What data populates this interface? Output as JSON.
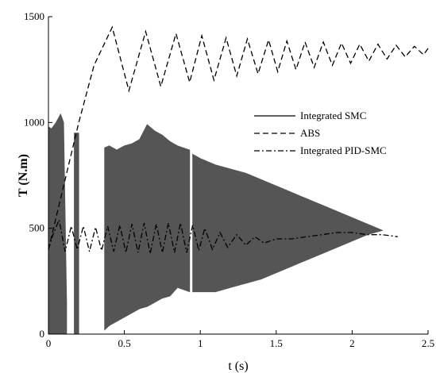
{
  "chart_data": {
    "type": "line",
    "title": "",
    "xlabel": "t (s)",
    "ylabel": "T (N.m)",
    "xlim": [
      0,
      2.5
    ],
    "ylim": [
      0,
      1500
    ],
    "xticks": [
      0,
      0.5,
      1,
      1.5,
      2,
      2.5
    ],
    "yticks": [
      0,
      500,
      1000,
      1500
    ],
    "x_tick_labels": [
      "0",
      "0.5",
      "1",
      "1.5",
      "2",
      "2.5"
    ],
    "y_tick_labels": [
      "0",
      "500",
      "1000",
      "1500"
    ],
    "grid": false,
    "legend_position": "right",
    "series": [
      {
        "name": "Integrated SMC",
        "style": "solid",
        "color": "#555555",
        "rendering": "filled chattering band",
        "segments": [
          {
            "x": [
              0.0,
              0.02,
              0.05,
              0.08,
              0.1,
              0.12
            ],
            "upper": [
              980,
              970,
              1000,
              1040,
              1000,
              150
            ],
            "lower": [
              0,
              0,
              0,
              0,
              0,
              0
            ]
          },
          {
            "x": [
              0.17,
              0.2
            ],
            "upper": [
              950,
              950
            ],
            "lower": [
              0,
              0
            ]
          },
          {
            "x": [
              0.37,
              0.4,
              0.45,
              0.5,
              0.55,
              0.6,
              0.65,
              0.7,
              0.75,
              0.8,
              0.85,
              0.93
            ],
            "upper": [
              880,
              890,
              870,
              890,
              900,
              920,
              990,
              960,
              940,
              910,
              890,
              870
            ],
            "lower": [
              20,
              40,
              60,
              80,
              100,
              120,
              130,
              150,
              170,
              180,
              220,
              200
            ]
          },
          {
            "x": [
              0.95,
              1.0,
              1.1,
              1.2,
              1.3,
              1.4,
              1.5,
              1.6,
              1.7,
              1.8,
              1.9,
              2.0,
              2.1,
              2.2
            ],
            "upper": [
              850,
              830,
              800,
              780,
              760,
              730,
              700,
              670,
              640,
              610,
              580,
              550,
              520,
              490
            ],
            "lower": [
              200,
              200,
              200,
              220,
              240,
              260,
              290,
              320,
              350,
              380,
              410,
              440,
              470,
              490
            ]
          }
        ]
      },
      {
        "name": "ABS",
        "style": "dashed",
        "color": "#000000",
        "x": [
          0.0,
          0.1,
          0.2,
          0.3,
          0.42,
          0.53,
          0.64,
          0.74,
          0.84,
          0.93,
          1.01,
          1.09,
          1.17,
          1.24,
          1.31,
          1.38,
          1.45,
          1.51,
          1.57,
          1.63,
          1.69,
          1.75,
          1.81,
          1.87,
          1.93,
          1.99,
          2.05,
          2.11,
          2.17,
          2.23,
          2.29,
          2.35,
          2.41,
          2.47,
          2.5
        ],
        "y": [
          400,
          700,
          1000,
          1270,
          1450,
          1150,
          1430,
          1170,
          1420,
          1190,
          1410,
          1200,
          1400,
          1220,
          1395,
          1230,
          1390,
          1240,
          1385,
          1250,
          1380,
          1260,
          1380,
          1270,
          1375,
          1280,
          1370,
          1290,
          1370,
          1300,
          1365,
          1310,
          1360,
          1320,
          1350
        ]
      },
      {
        "name": "Integrated PID-SMC",
        "style": "dashdot",
        "color": "#000000",
        "x": [
          0.0,
          0.03,
          0.07,
          0.11,
          0.15,
          0.19,
          0.23,
          0.27,
          0.31,
          0.35,
          0.39,
          0.43,
          0.47,
          0.51,
          0.55,
          0.59,
          0.63,
          0.67,
          0.71,
          0.75,
          0.79,
          0.83,
          0.87,
          0.91,
          0.95,
          0.99,
          1.03,
          1.08,
          1.13,
          1.18,
          1.24,
          1.3,
          1.36,
          1.42,
          1.5,
          1.6,
          1.7,
          1.8,
          1.9,
          2.0,
          2.1,
          2.2,
          2.3
        ],
        "y": [
          400,
          470,
          540,
          390,
          510,
          400,
          510,
          390,
          505,
          395,
          510,
          390,
          515,
          385,
          520,
          385,
          525,
          380,
          520,
          385,
          525,
          385,
          525,
          385,
          515,
          395,
          500,
          400,
          480,
          410,
          470,
          420,
          460,
          430,
          450,
          450,
          460,
          470,
          480,
          480,
          470,
          470,
          460
        ]
      }
    ]
  }
}
